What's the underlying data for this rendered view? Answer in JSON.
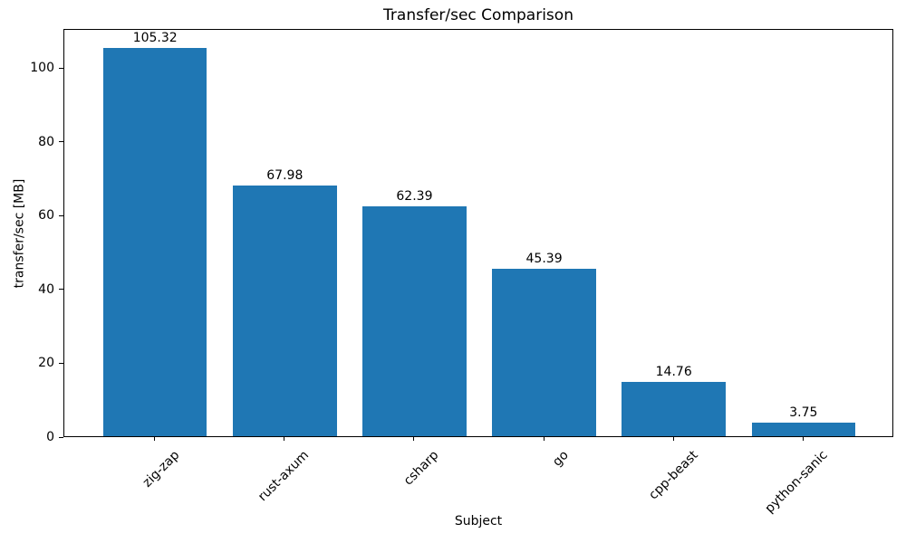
{
  "chart_data": {
    "type": "bar",
    "title": "Transfer/sec Comparison",
    "xlabel": "Subject",
    "ylabel": "transfer/sec [MB]",
    "categories": [
      "zig-zap",
      "rust-axum",
      "csharp",
      "go",
      "cpp-beast",
      "python-sanic"
    ],
    "values": [
      105.32,
      67.98,
      62.39,
      45.39,
      14.76,
      3.75
    ],
    "value_labels": [
      "105.32",
      "67.98",
      "62.39",
      "45.39",
      "14.76",
      "3.75"
    ],
    "yticks": [
      0,
      20,
      40,
      60,
      80,
      100
    ],
    "ylim": [
      0,
      110.6
    ],
    "xtick_rotation_deg": 45,
    "grid": false,
    "legend": null,
    "bar_color": "#1f77b4",
    "spine_color": "#000000",
    "text_color": "#000000",
    "background_color": "#ffffff"
  }
}
